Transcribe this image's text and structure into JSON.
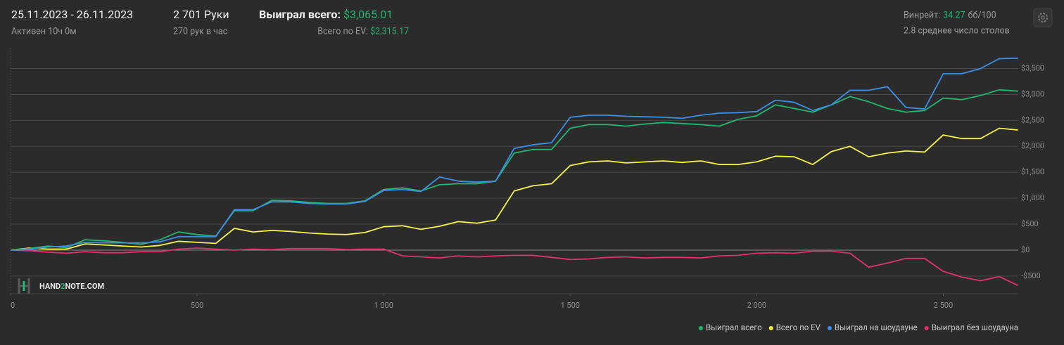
{
  "header": {
    "dates": "25.11.2023 - 26.11.2023",
    "active": "Активен 10ч 0м",
    "hands": "2 701 Руки",
    "hands_per_hour": "270 рук в час",
    "won_label": "Выиграл всего:",
    "won_value": "$3,065.01",
    "ev_label": "Всего по EV:",
    "ev_value": "$2,315.17",
    "winrate_label": "Винрейт:",
    "winrate_value": "34.27",
    "winrate_unit": "бб/100",
    "tables": "2.8 среднее число столов"
  },
  "logo": {
    "part1": "HAND",
    "part2": "2",
    "part3": "NOTE.COM"
  },
  "chart_data": {
    "type": "line",
    "x": [
      0,
      50,
      100,
      150,
      200,
      250,
      300,
      350,
      400,
      450,
      500,
      550,
      600,
      650,
      700,
      750,
      800,
      850,
      900,
      950,
      1000,
      1050,
      1100,
      1150,
      1200,
      1250,
      1300,
      1350,
      1400,
      1450,
      1500,
      1550,
      1600,
      1650,
      1700,
      1750,
      1800,
      1850,
      1900,
      1950,
      2000,
      2050,
      2100,
      2150,
      2200,
      2250,
      2300,
      2350,
      2400,
      2450,
      2500,
      2550,
      2600,
      2650,
      2700
    ],
    "series": [
      {
        "name": "Выиграл всего",
        "color": "#22b573",
        "values": [
          0,
          30,
          80,
          50,
          200,
          180,
          150,
          110,
          200,
          350,
          300,
          270,
          760,
          760,
          960,
          950,
          920,
          900,
          900,
          950,
          1170,
          1200,
          1140,
          1260,
          1280,
          1280,
          1330,
          1870,
          1940,
          1940,
          2350,
          2420,
          2420,
          2390,
          2430,
          2460,
          2440,
          2420,
          2390,
          2520,
          2590,
          2800,
          2730,
          2660,
          2800,
          2960,
          2860,
          2730,
          2660,
          2690,
          2930,
          2900,
          2980,
          3090,
          3065
        ]
      },
      {
        "name": "Всего по EV",
        "color": "#f5f54a",
        "values": [
          0,
          40,
          20,
          20,
          120,
          100,
          80,
          60,
          90,
          170,
          150,
          130,
          420,
          350,
          380,
          360,
          330,
          310,
          300,
          340,
          450,
          470,
          400,
          460,
          550,
          520,
          580,
          1140,
          1240,
          1280,
          1630,
          1700,
          1720,
          1680,
          1700,
          1720,
          1690,
          1720,
          1650,
          1650,
          1700,
          1810,
          1800,
          1650,
          1900,
          2000,
          1800,
          1870,
          1910,
          1890,
          2220,
          2150,
          2150,
          2350,
          2315
        ]
      },
      {
        "name": "Выиграл на шоудауне",
        "color": "#3d8fe8",
        "values": [
          0,
          10,
          60,
          80,
          150,
          140,
          140,
          140,
          160,
          260,
          260,
          260,
          780,
          780,
          930,
          930,
          900,
          890,
          890,
          940,
          1150,
          1170,
          1130,
          1410,
          1330,
          1310,
          1330,
          1960,
          2030,
          2070,
          2560,
          2600,
          2600,
          2580,
          2570,
          2560,
          2540,
          2600,
          2640,
          2650,
          2670,
          2890,
          2850,
          2690,
          2800,
          3080,
          3080,
          3150,
          2750,
          2720,
          3400,
          3400,
          3500,
          3690,
          3700
        ]
      },
      {
        "name": "Выиграл без шоудауна",
        "color": "#e0336b",
        "values": [
          0,
          -10,
          -40,
          -60,
          -30,
          -50,
          -50,
          -30,
          -30,
          20,
          40,
          20,
          0,
          20,
          10,
          30,
          30,
          30,
          10,
          20,
          20,
          -110,
          -130,
          -150,
          -110,
          -130,
          -110,
          -100,
          -100,
          -140,
          -180,
          -170,
          -140,
          -130,
          -150,
          -140,
          -140,
          -150,
          -110,
          -100,
          -60,
          -50,
          -60,
          -20,
          -20,
          -60,
          -330,
          -250,
          -160,
          -160,
          -410,
          -520,
          -590,
          -510,
          -680
        ]
      }
    ],
    "xlim": [
      0,
      2701
    ],
    "xticks": [
      0,
      500,
      {
        "value": 1000,
        "label": "1 000"
      },
      {
        "value": 1500,
        "label": "1 500"
      },
      {
        "value": 2000,
        "label": "2 000"
      },
      {
        "value": 2500,
        "label": "2 500"
      }
    ],
    "ylim": [
      -840,
      3900
    ],
    "yticks": [
      {
        "value": -500,
        "label": "-$500"
      },
      {
        "value": 0,
        "label": "$0"
      },
      {
        "value": 500,
        "label": "$500"
      },
      {
        "value": 1000,
        "label": "$1,000"
      },
      {
        "value": 1500,
        "label": "$1,500"
      },
      {
        "value": 2000,
        "label": "$2,000"
      },
      {
        "value": 2500,
        "label": "$2,500"
      },
      {
        "value": 3000,
        "label": "$3,000"
      },
      {
        "value": 3500,
        "label": "$3,500"
      }
    ],
    "grid": true,
    "legend": "bottom-right"
  }
}
